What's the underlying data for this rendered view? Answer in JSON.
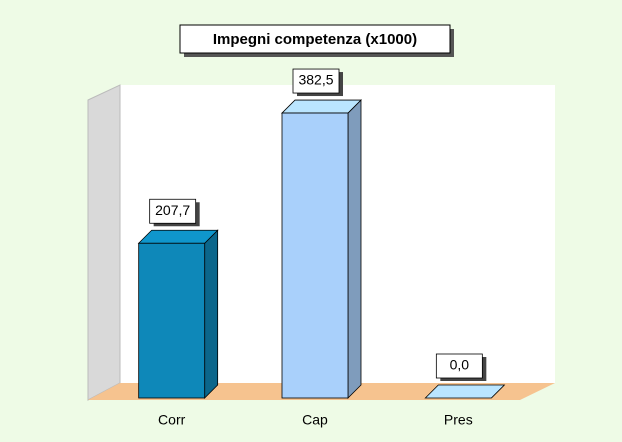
{
  "chart_data": {
    "type": "bar3d",
    "title": "Impegni competenza (x1000)",
    "categories": [
      "Corr",
      "Cap",
      "Pres"
    ],
    "values": [
      207.7,
      382.5,
      0.0
    ],
    "value_labels": [
      "207,7",
      "382,5",
      "0,0"
    ],
    "colors": [
      "#0e88b9",
      "#a9d0fb",
      "#a9d0fb"
    ],
    "ylim": [
      0,
      400
    ]
  }
}
